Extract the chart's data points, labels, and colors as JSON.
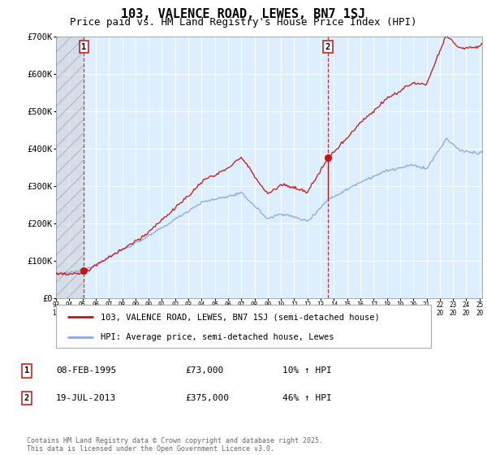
{
  "title": "103, VALENCE ROAD, LEWES, BN7 1SJ",
  "subtitle": "Price paid vs. HM Land Registry's House Price Index (HPI)",
  "ylim": [
    0,
    700000
  ],
  "yticks": [
    0,
    100000,
    200000,
    300000,
    400000,
    500000,
    600000,
    700000
  ],
  "ytick_labels": [
    "£0",
    "£100K",
    "£200K",
    "£300K",
    "£400K",
    "£500K",
    "£600K",
    "£700K"
  ],
  "xlim_start": 1993.0,
  "xlim_end": 2025.2,
  "hpi_color": "#88aadd",
  "price_color": "#cc1111",
  "marker1_date": 1995.1,
  "marker1_price": 73000,
  "marker2_date": 2013.54,
  "marker2_price": 375000,
  "legend1": "103, VALENCE ROAD, LEWES, BN7 1SJ (semi-detached house)",
  "legend2": "HPI: Average price, semi-detached house, Lewes",
  "footer": "Contains HM Land Registry data © Crown copyright and database right 2025.\nThis data is licensed under the Open Government Licence v3.0.",
  "background_plot": "#ddeeff",
  "grid_color": "#ffffff",
  "title_fontsize": 11,
  "subtitle_fontsize": 9
}
